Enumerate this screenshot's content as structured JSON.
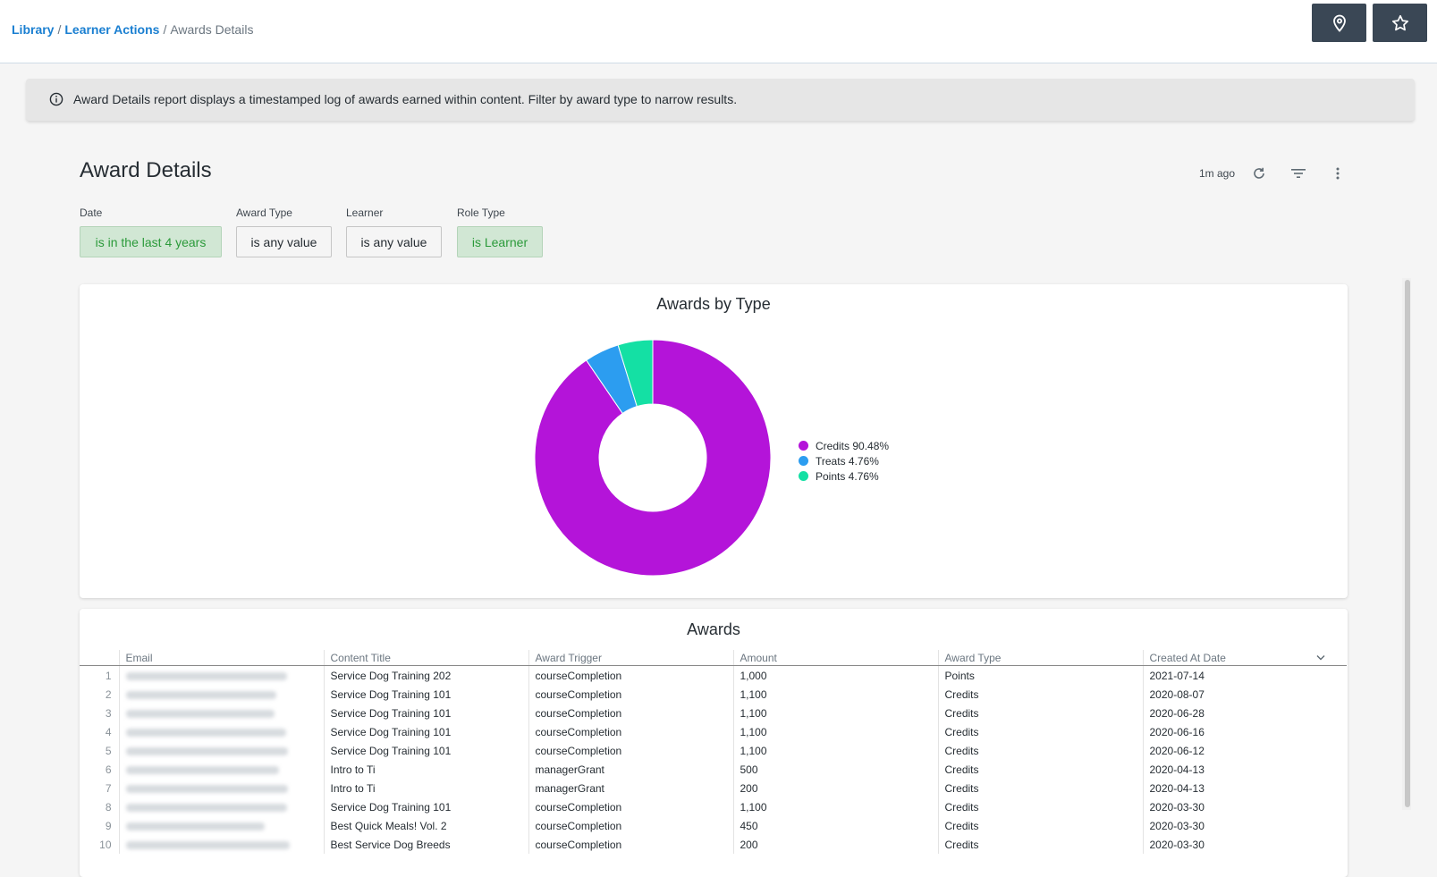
{
  "breadcrumb": {
    "items": [
      {
        "label": "Library",
        "link": true
      },
      {
        "label": "Learner Actions",
        "link": true
      },
      {
        "label": "Awards Details",
        "link": false
      }
    ]
  },
  "header_buttons": [
    {
      "name": "location-button",
      "icon": "location-pin-icon"
    },
    {
      "name": "favorite-button",
      "icon": "star-icon"
    }
  ],
  "info_banner": {
    "icon": "info-icon",
    "text": "Award Details report displays a timestamped log of awards earned within content. Filter by award type to narrow results."
  },
  "dashboard": {
    "title": "Award Details",
    "updated": "1m ago",
    "tools": [
      "refresh-icon",
      "filter-icon",
      "more-vertical-icon"
    ]
  },
  "filters": [
    {
      "label": "Date",
      "value": "is in the last 4 years",
      "active": true
    },
    {
      "label": "Award Type",
      "value": "is any value",
      "active": false
    },
    {
      "label": "Learner",
      "value": "is any value",
      "active": false
    },
    {
      "label": "Role Type",
      "value": "is Learner",
      "active": true
    }
  ],
  "chart_data": {
    "type": "pie",
    "title": "Awards by Type",
    "donut": true,
    "legend_position": "right",
    "slices": [
      {
        "label": "Credits",
        "value": 90.48,
        "display": "Credits 90.48%",
        "color": "#b414d9"
      },
      {
        "label": "Treats",
        "value": 4.76,
        "display": "Treats 4.76%",
        "color": "#2c9df0"
      },
      {
        "label": "Points",
        "value": 4.76,
        "display": "Points 4.76%",
        "color": "#14e0a4"
      }
    ]
  },
  "awards_table": {
    "title": "Awards",
    "columns": [
      "",
      "Email",
      "Content Title",
      "Award Trigger",
      "Amount",
      "Award Type",
      "Created At Date"
    ],
    "sort_icon": "chevron-down-icon",
    "rows": [
      {
        "n": "1",
        "title": "Service Dog Training 202",
        "trigger": "courseCompletion",
        "amount": "1,000",
        "type": "Points",
        "date": "2021-07-14"
      },
      {
        "n": "2",
        "title": "Service Dog Training 101",
        "trigger": "courseCompletion",
        "amount": "1,100",
        "type": "Credits",
        "date": "2020-08-07"
      },
      {
        "n": "3",
        "title": "Service Dog Training 101",
        "trigger": "courseCompletion",
        "amount": "1,100",
        "type": "Credits",
        "date": "2020-06-28"
      },
      {
        "n": "4",
        "title": "Service Dog Training 101",
        "trigger": "courseCompletion",
        "amount": "1,100",
        "type": "Credits",
        "date": "2020-06-16"
      },
      {
        "n": "5",
        "title": "Service Dog Training 101",
        "trigger": "courseCompletion",
        "amount": "1,100",
        "type": "Credits",
        "date": "2020-06-12"
      },
      {
        "n": "6",
        "title": "Intro to Ti",
        "trigger": "managerGrant",
        "amount": "500",
        "type": "Credits",
        "date": "2020-04-13"
      },
      {
        "n": "7",
        "title": "Intro to Ti",
        "trigger": "managerGrant",
        "amount": "200",
        "type": "Credits",
        "date": "2020-04-13"
      },
      {
        "n": "8",
        "title": "Service Dog Training 101",
        "trigger": "courseCompletion",
        "amount": "1,100",
        "type": "Credits",
        "date": "2020-03-30"
      },
      {
        "n": "9",
        "title": "Best Quick Meals! Vol. 2",
        "trigger": "courseCompletion",
        "amount": "450",
        "type": "Credits",
        "date": "2020-03-30"
      },
      {
        "n": "10",
        "title": "Best Service Dog Breeds",
        "trigger": "courseCompletion",
        "amount": "200",
        "type": "Credits",
        "date": "2020-03-30"
      }
    ]
  }
}
